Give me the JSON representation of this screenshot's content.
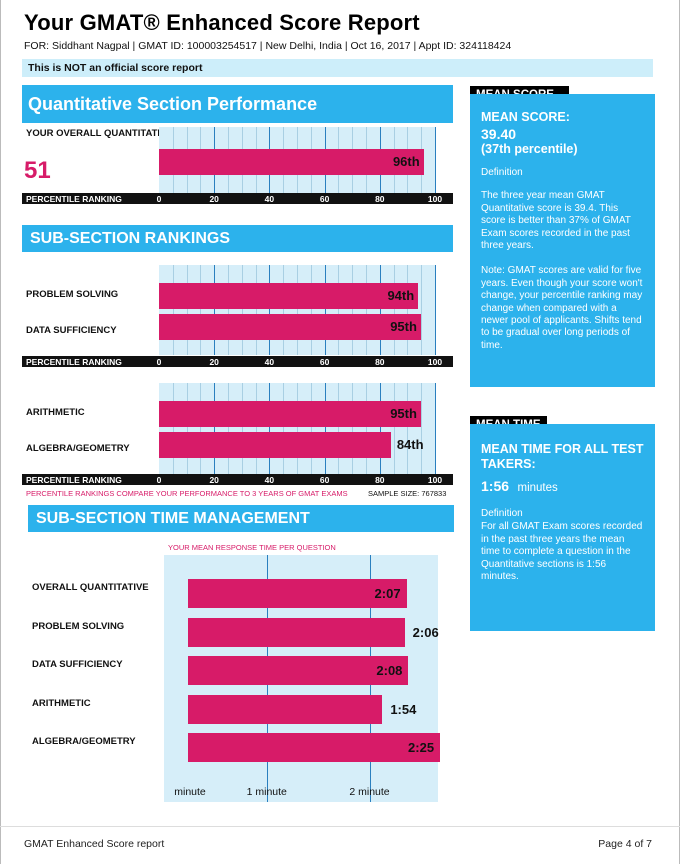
{
  "header": {
    "title": "Your GMAT® Enhanced Score Report",
    "subtitle": "FOR: Siddhant Nagpal | GMAT ID: 100003254517 | New Delhi, India | Oct 16, 2017 | Appt ID: 324118424",
    "official_note": "This is NOT an official score report"
  },
  "quant": {
    "heading": "Quantitative Section Performance",
    "overall_caption": "YOUR OVERALL QUANTITATIVE SCORE:",
    "overall_score": "51",
    "percentile": 96,
    "percentile_label": "96th"
  },
  "axis": {
    "caption": "PERCENTILE RANKING",
    "ticks": [
      "0",
      "20",
      "40",
      "60",
      "80",
      "100"
    ]
  },
  "subsection": {
    "heading": "SUB-SECTION RANKINGS",
    "group1": [
      {
        "name": "PROBLEM SOLVING",
        "percentile": 94,
        "label": "94th"
      },
      {
        "name": "DATA SUFFICIENCY",
        "percentile": 95,
        "label": "95th"
      }
    ],
    "group2": [
      {
        "name": "ARITHMETIC",
        "percentile": 95,
        "label": "95th"
      },
      {
        "name": "ALGEBRA/GEOMETRY",
        "percentile": 84,
        "label": "84th"
      }
    ],
    "compare_note": "PERCENTILE RANKINGS COMPARE YOUR PERFORMANCE TO 3 YEARS OF GMAT EXAMS",
    "sample_size": "SAMPLE SIZE: 767833"
  },
  "time": {
    "heading": "SUB-SECTION TIME MANAGEMENT",
    "caption": "YOUR MEAN RESPONSE TIME PER QUESTION",
    "rows": [
      {
        "name": "OVERALL QUANTITATIVE",
        "seconds": 127,
        "label": "2:07"
      },
      {
        "name": "PROBLEM SOLVING",
        "seconds": 126,
        "label": "2:06"
      },
      {
        "name": "DATA SUFFICIENCY",
        "seconds": 128,
        "label": "2:08"
      },
      {
        "name": "ARITHMETIC",
        "seconds": 114,
        "label": "1:54"
      },
      {
        "name": "ALGEBRA/GEOMETRY",
        "seconds": 145,
        "label": "2:25"
      }
    ],
    "axis_labels": [
      "minute",
      "1 minute",
      "2 minute"
    ]
  },
  "mean_score": {
    "tag": "MEAN SCORE",
    "label": "MEAN SCORE:",
    "value": "39.40",
    "percentile": "(37th percentile)",
    "definition_title": "Definition",
    "definition": "The three year mean GMAT Quantitative score is 39.4. This score is better than 37% of GMAT Exam scores recorded in the past three years.",
    "note": "Note:  GMAT scores are valid for five years. Even though your score won't change, your percentile ranking may change when compared with a newer pool of applicants.  Shifts tend to be gradual over long periods of time."
  },
  "mean_time": {
    "tag": "MEAN TIME",
    "label": "MEAN TIME FOR ALL TEST TAKERS:",
    "value": "1:56",
    "unit": "minutes",
    "definition_title": "Definition",
    "definition": "For all GMAT Exam scores recorded in the past three years the mean time to complete a question in the Quantitative sections is 1:56 minutes."
  },
  "footer": {
    "left": "GMAT Enhanced Score report",
    "right": "Page 4 of 7"
  },
  "colors": {
    "accent_blue": "#2cb2ec",
    "bar_pink": "#d71b68",
    "chart_bg": "#d6eef9"
  },
  "chart_data": [
    {
      "type": "bar",
      "title": "Quantitative Section Performance",
      "xlabel": "PERCENTILE RANKING",
      "categories": [
        "Quantitative"
      ],
      "values": [
        96
      ],
      "xlim": [
        0,
        100
      ]
    },
    {
      "type": "bar",
      "title": "SUB-SECTION RANKINGS",
      "xlabel": "PERCENTILE RANKING",
      "categories": [
        "PROBLEM SOLVING",
        "DATA SUFFICIENCY",
        "ARITHMETIC",
        "ALGEBRA/GEOMETRY"
      ],
      "values": [
        94,
        95,
        95,
        84
      ],
      "xlim": [
        0,
        100
      ]
    },
    {
      "type": "bar",
      "title": "SUB-SECTION TIME MANAGEMENT",
      "xlabel": "YOUR MEAN RESPONSE TIME PER QUESTION",
      "categories": [
        "OVERALL QUANTITATIVE",
        "PROBLEM SOLVING",
        "DATA SUFFICIENCY",
        "ARITHMETIC",
        "ALGEBRA/GEOMETRY"
      ],
      "values": [
        "2:07",
        "2:06",
        "2:08",
        "1:54",
        "2:25"
      ],
      "xlim": [
        "0:00",
        "2:40"
      ]
    }
  ]
}
